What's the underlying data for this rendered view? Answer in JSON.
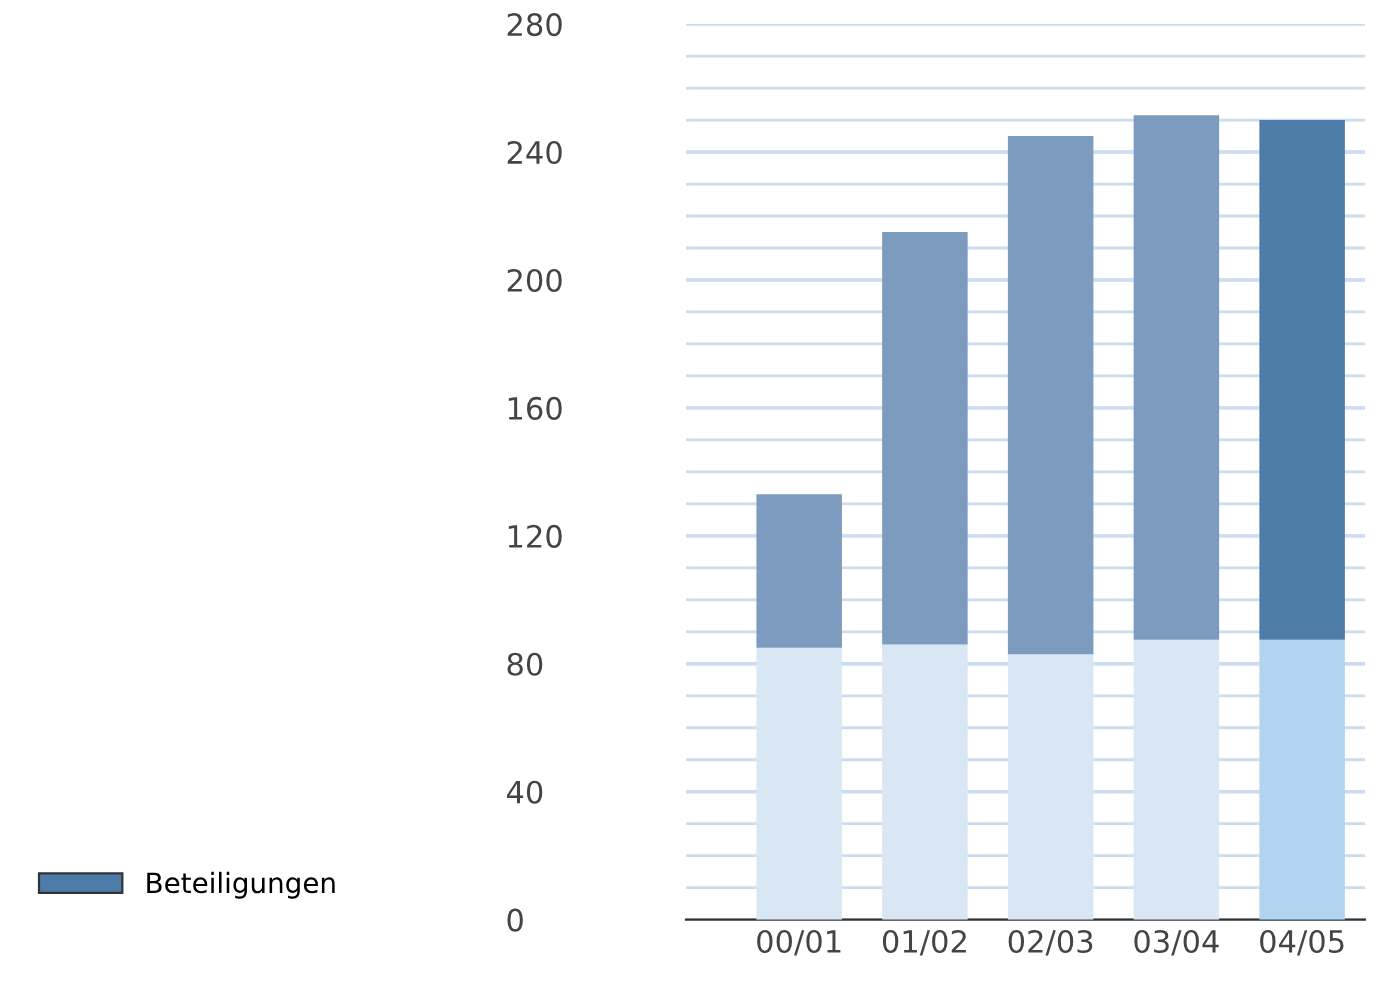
{
  "chart_data": {
    "type": "bar",
    "stacked": true,
    "categories": [
      "00/01",
      "01/02",
      "02/03",
      "03/04",
      "04/05"
    ],
    "series": [
      {
        "colors": [
          "#d9e7f5",
          "#d9e7f5",
          "#d9e7f5",
          "#d9e7f5",
          "#b3d4ee"
        ],
        "values": [
          85,
          86,
          83,
          87.5,
          87.5
        ]
      },
      {
        "name": "Beteiligungen",
        "colors": [
          "#7d9bbf",
          "#7d9bbf",
          "#7d9bbf",
          "#7d9bbf",
          "#4e7ca8"
        ],
        "color": "#4e7ca8",
        "values": [
          48,
          129,
          162,
          164,
          162.5
        ]
      }
    ],
    "ylim": [
      0,
      280
    ],
    "yticks": [
      0,
      40,
      80,
      120,
      160,
      200,
      240,
      280
    ],
    "grid": "y",
    "legend": "bottom left"
  }
}
